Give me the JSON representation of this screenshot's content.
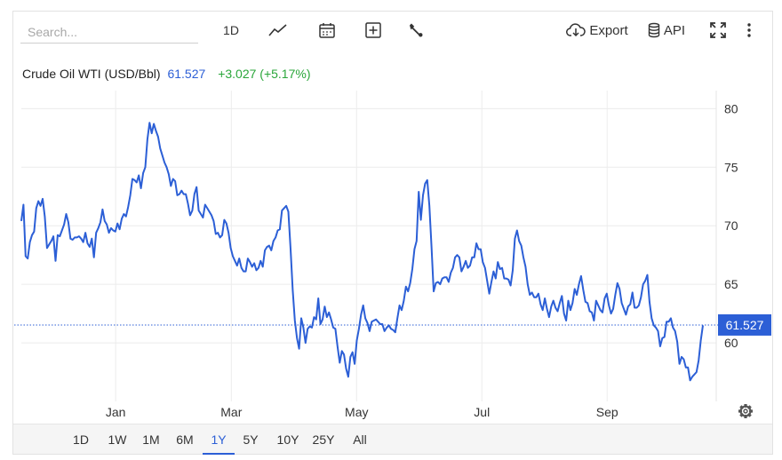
{
  "toolbar": {
    "search_placeholder": "Search...",
    "interval_label": "1D",
    "export_label": "Export",
    "api_label": "API"
  },
  "header": {
    "instrument": "Crude Oil WTI (USD/Bbl)",
    "price": "61.527",
    "change": "+3.027 (+5.17%)"
  },
  "ranges": {
    "items": [
      "1D",
      "1W",
      "1M",
      "6M",
      "1Y",
      "5Y",
      "10Y",
      "25Y",
      "All"
    ],
    "active": "1Y"
  },
  "colors": {
    "line": "#2c5fd6",
    "up": "#2aa63a",
    "price_tag": "#2c5fd6"
  },
  "chart_data": {
    "type": "line",
    "title": "Crude Oil WTI (USD/Bbl)",
    "xlabel": "",
    "ylabel": "",
    "ylim": [
      55,
      82
    ],
    "yticks": [
      60,
      65,
      70,
      75,
      80
    ],
    "xticks": [
      {
        "label": "Jan",
        "x": 2025.003
      },
      {
        "label": "Mar",
        "x": 2025.16
      },
      {
        "label": "May",
        "x": 2025.33
      },
      {
        "label": "Jul",
        "x": 2025.5
      },
      {
        "label": "Sep",
        "x": 2025.67
      }
    ],
    "current_value": 61.527,
    "current_label": "61.527",
    "grid": true,
    "series": [
      {
        "values": [
          70.4,
          71.8,
          67.4,
          67.2,
          68.6,
          69.2,
          69.5,
          71.5,
          72.1,
          71.7,
          72.3,
          70.8,
          68.1,
          68.4,
          68.7,
          69.1,
          67.0,
          69.2,
          69.1,
          69.6,
          70.1,
          71.0,
          70.3,
          68.9,
          68.8,
          69.0,
          69.0,
          69.1,
          68.9,
          68.6,
          69.4,
          68.5,
          68.2,
          68.9,
          67.3,
          69.4,
          69.8,
          70.3,
          71.4,
          70.4,
          70.1,
          69.4,
          69.8,
          69.6,
          69.5,
          70.2,
          69.7,
          70.6,
          71.0,
          70.8,
          71.6,
          72.6,
          74.0,
          73.9,
          73.7,
          74.3,
          73.2,
          74.5,
          75.0,
          77.4,
          78.8,
          77.9,
          78.7,
          78.1,
          77.6,
          76.6,
          76.0,
          75.4,
          75.0,
          74.4,
          73.4,
          74.0,
          73.8,
          72.6,
          72.7,
          73.0,
          72.7,
          72.7,
          71.9,
          70.9,
          71.3,
          72.7,
          73.3,
          71.3,
          71.0,
          70.7,
          71.8,
          71.5,
          71.2,
          70.9,
          70.4,
          69.3,
          69.4,
          69.0,
          69.2,
          70.5,
          70.2,
          69.4,
          68.1,
          67.4,
          67.0,
          66.6,
          67.2,
          66.4,
          66.1,
          66.1,
          67.2,
          66.9,
          66.5,
          66.8,
          66.2,
          66.4,
          67.0,
          66.5,
          67.9,
          68.2,
          68.3,
          67.9,
          68.7,
          69.0,
          69.6,
          69.7,
          71.3,
          71.5,
          71.7,
          71.2,
          68.0,
          64.5,
          61.9,
          60.4,
          59.5,
          62.1,
          61.3,
          60.0,
          61.2,
          61.4,
          61.3,
          62.2,
          62.0,
          63.8,
          61.6,
          62.0,
          63.1,
          62.2,
          62.6,
          62.0,
          61.3,
          61.2,
          59.7,
          58.3,
          59.3,
          59.0,
          57.8,
          57.1,
          58.8,
          59.2,
          58.2,
          60.2,
          61.2,
          62.4,
          63.2,
          62.1,
          61.7,
          61.0,
          61.8,
          61.9,
          62.0,
          61.8,
          61.6,
          61.6,
          61.0,
          61.3,
          61.5,
          61.2,
          61.1,
          60.9,
          62.1,
          63.2,
          62.8,
          63.6,
          64.8,
          64.4,
          65.1,
          66.3,
          68.0,
          68.7,
          72.9,
          70.5,
          72.6,
          73.6,
          73.9,
          71.7,
          68.2,
          64.4,
          65.1,
          65.2,
          65.0,
          65.5,
          65.6,
          65.6,
          65.2,
          66.0,
          66.4,
          67.3,
          67.5,
          67.3,
          66.1,
          66.5,
          67.0,
          66.4,
          66.6,
          67.3,
          67.3,
          68.5,
          68.0,
          68.0,
          66.9,
          66.4,
          65.3,
          64.2,
          65.2,
          66.1,
          65.5,
          66.9,
          66.3,
          66.4,
          65.5,
          65.5,
          65.4,
          64.9,
          66.2,
          68.9,
          69.6,
          68.7,
          68.3,
          67.3,
          66.5,
          65.0,
          64.1,
          64.3,
          63.9,
          63.9,
          64.2,
          63.3,
          62.8,
          63.8,
          62.9,
          62.2,
          63.1,
          63.6,
          63.0,
          62.7,
          63.4,
          64.0,
          62.5,
          61.9,
          63.6,
          62.8,
          63.4,
          64.6,
          64.1,
          65.0,
          65.7,
          64.5,
          63.5,
          63.4,
          62.7,
          62.6,
          61.9,
          63.6,
          63.2,
          62.8,
          62.6,
          63.8,
          64.2,
          63.2,
          62.5,
          62.9,
          64.1,
          65.1,
          64.6,
          63.4,
          62.9,
          62.4,
          63.1,
          63.3,
          64.3,
          63.0,
          63.0,
          63.2,
          63.9,
          65.0,
          65.3,
          65.8,
          63.5,
          62.1,
          61.5,
          61.3,
          61.0,
          59.7,
          60.4,
          60.5,
          61.8,
          61.8,
          62.1,
          61.3,
          61.0,
          60.1,
          58.2,
          58.8,
          58.6,
          57.9,
          57.9,
          56.8,
          57.1,
          57.3,
          57.5,
          58.5,
          60.2,
          61.5
        ]
      }
    ]
  }
}
